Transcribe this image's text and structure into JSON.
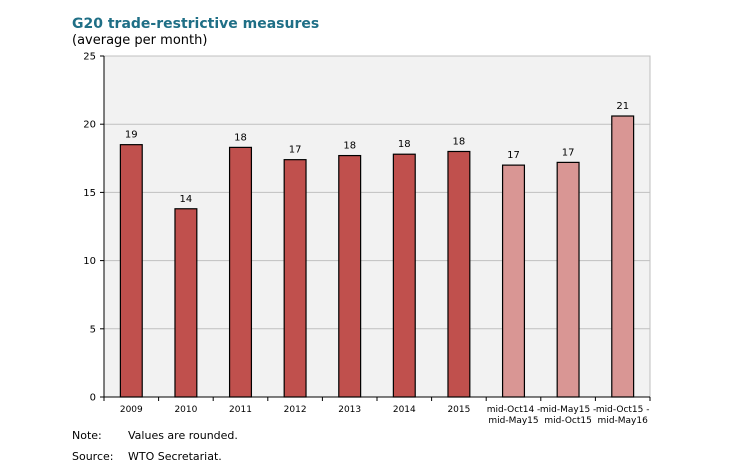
{
  "title": "G20 trade-restrictive measures",
  "subtitle": "(average per month)",
  "chart_data": {
    "type": "bar",
    "categories": [
      "2009",
      "2010",
      "2011",
      "2012",
      "2013",
      "2014",
      "2015",
      "mid-Oct14 -\nmid-May15",
      "mid-May15 - mid-Oct15",
      "mid-Oct15 -\nmid-May16"
    ],
    "category_labels": [
      [
        "2009"
      ],
      [
        "2010"
      ],
      [
        "2011"
      ],
      [
        "2012"
      ],
      [
        "2013"
      ],
      [
        "2014"
      ],
      [
        "2015"
      ],
      [
        "mid-Oct14 -",
        "mid-May15"
      ],
      [
        "mid-May15 -",
        "mid-Oct15"
      ],
      [
        "mid-Oct15 -",
        "mid-May16"
      ]
    ],
    "values": [
      18.5,
      13.8,
      18.3,
      17.4,
      17.7,
      17.8,
      18.0,
      17.0,
      17.2,
      20.6
    ],
    "data_labels": [
      "19",
      "14",
      "18",
      "17",
      "18",
      "18",
      "18",
      "17",
      "17",
      "21"
    ],
    "highlight_from_index": 7,
    "ylim": [
      0,
      25
    ],
    "yticks": [
      0,
      5,
      10,
      15,
      20,
      25
    ],
    "grid": true,
    "colors": {
      "annual": "#c0504d",
      "period": "#d99694",
      "outline": "#000000",
      "plot_bg": "#f2f2f2",
      "grid": "#c0c0c0"
    }
  },
  "notes": [
    {
      "label": "Note:",
      "text": "Values are rounded."
    },
    {
      "label": "Source:",
      "text": "WTO Secretariat."
    }
  ]
}
